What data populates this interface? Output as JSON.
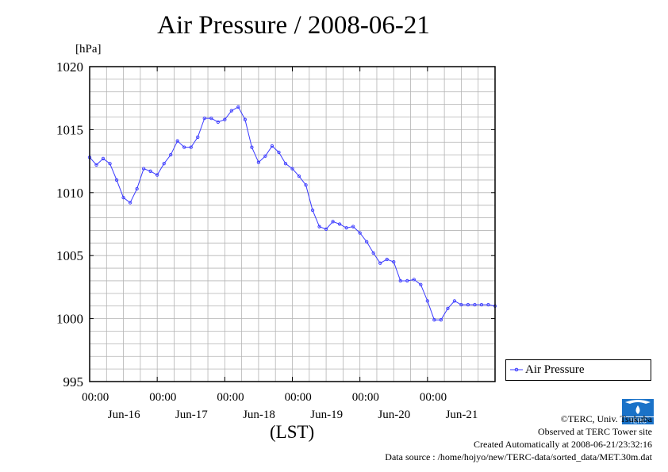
{
  "title": "Air Pressure / 2008-06-21",
  "unit_label": "[hPa]",
  "x_unit_label": "(LST)",
  "legend": {
    "label": "Air Pressure"
  },
  "credits": {
    "copyright": "©TERC, Univ. Tsukuba",
    "observed": "Observed at TERC Tower site",
    "created": "Created Automatically at 2008-06-21/23:32:16",
    "source": "Data source : /home/hojyo/new/TERC-data/sorted_data/MET.30m.dat"
  },
  "logo": {
    "text": "TERC",
    "icon": "terc-logo-icon"
  },
  "colors": {
    "series": "#3a3aff",
    "grid": "#b4b4b4"
  },
  "chart_data": {
    "type": "line",
    "title": "Air Pressure / 2008-06-21",
    "ylabel": "[hPa]",
    "xlabel": "(LST)",
    "ylim": [
      995,
      1020
    ],
    "xlim_days": [
      -6,
      0
    ],
    "y_ticks": [
      995,
      1000,
      1005,
      1010,
      1015,
      1020
    ],
    "x_tick_labels": [
      {
        "day": -5,
        "time": "00:00",
        "date": "Jun-16"
      },
      {
        "day": -4,
        "time": "00:00",
        "date": "Jun-17"
      },
      {
        "day": -3,
        "time": "00:00",
        "date": "Jun-18"
      },
      {
        "day": -2,
        "time": "00:00",
        "date": "Jun-19"
      },
      {
        "day": -1,
        "time": "00:00",
        "date": "Jun-20"
      },
      {
        "day": 0,
        "time": "00:00",
        "date": "Jun-21"
      }
    ],
    "grid": true,
    "legend_position": "right-bottom",
    "series": [
      {
        "name": "Air Pressure",
        "x_day": [
          -6.0,
          -5.9,
          -5.8,
          -5.7,
          -5.6,
          -5.5,
          -5.4,
          -5.3,
          -5.2,
          -5.1,
          -5.0,
          -4.9,
          -4.8,
          -4.7,
          -4.6,
          -4.5,
          -4.4,
          -4.3,
          -4.2,
          -4.1,
          -4.0,
          -3.9,
          -3.8,
          -3.7,
          -3.6,
          -3.5,
          -3.4,
          -3.3,
          -3.2,
          -3.1,
          -3.0,
          -2.9,
          -2.8,
          -2.7,
          -2.6,
          -2.5,
          -2.4,
          -2.3,
          -2.2,
          -2.1,
          -2.0,
          -1.9,
          -1.8,
          -1.7,
          -1.6,
          -1.5,
          -1.4,
          -1.3,
          -1.2,
          -1.1,
          -1.0,
          -0.9,
          -0.8,
          -0.7,
          -0.6,
          -0.5,
          -0.4,
          -0.3,
          -0.2,
          -0.1,
          0.0
        ],
        "values": [
          1012.8,
          1012.2,
          1012.7,
          1012.3,
          1011.0,
          1009.6,
          1009.2,
          1010.3,
          1011.9,
          1011.7,
          1011.4,
          1012.3,
          1013.0,
          1014.1,
          1013.6,
          1013.6,
          1014.4,
          1015.9,
          1015.9,
          1015.6,
          1015.8,
          1016.5,
          1016.8,
          1015.8,
          1013.6,
          1012.4,
          1012.9,
          1013.7,
          1013.2,
          1012.3,
          1011.9,
          1011.3,
          1010.6,
          1008.6,
          1007.3,
          1007.1,
          1007.7,
          1007.5,
          1007.2,
          1007.3,
          1006.8,
          1006.1,
          1005.2,
          1004.4,
          1004.7,
          1004.5,
          1003.0,
          1003.0,
          1003.1,
          1002.7,
          1001.4,
          999.9,
          999.9,
          1000.8,
          1001.4,
          1001.1,
          1001.1,
          1001.1,
          1001.1,
          1001.1,
          1001.0
        ]
      }
    ]
  }
}
